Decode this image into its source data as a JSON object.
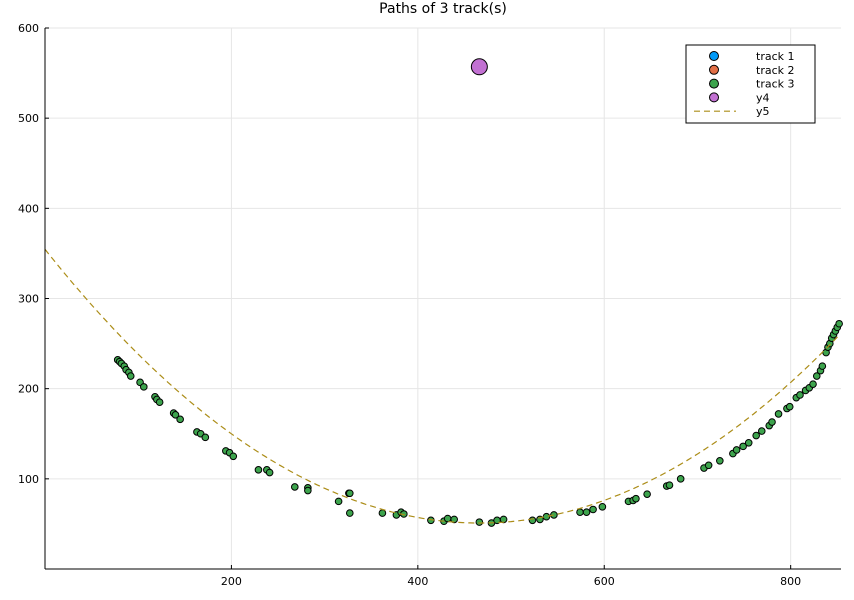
{
  "chart_data": {
    "type": "scatter",
    "title": "Paths of 3 track(s)",
    "xlabel": "",
    "ylabel": "",
    "xlim": [
      0,
      854
    ],
    "ylim": [
      0,
      600
    ],
    "x_ticks": [
      200,
      400,
      600,
      800
    ],
    "y_ticks": [
      100,
      200,
      300,
      400,
      500,
      600
    ],
    "grid": true,
    "legend_position": "top-right",
    "series": [
      {
        "name": "track 1",
        "kind": "scatter",
        "color": "#009af9",
        "points": []
      },
      {
        "name": "track 2",
        "kind": "scatter",
        "color": "#e26f46",
        "points": []
      },
      {
        "name": "track 3",
        "kind": "scatter",
        "color": "#3da44d",
        "points": [
          [
            78,
            232
          ],
          [
            80,
            230
          ],
          [
            82,
            228
          ],
          [
            85,
            225
          ],
          [
            87,
            221
          ],
          [
            90,
            218
          ],
          [
            92,
            214
          ],
          [
            102,
            207
          ],
          [
            106,
            202
          ],
          [
            118,
            191
          ],
          [
            120,
            188
          ],
          [
            123,
            185
          ],
          [
            138,
            173
          ],
          [
            140,
            171
          ],
          [
            145,
            166
          ],
          [
            163,
            152
          ],
          [
            167,
            150
          ],
          [
            172,
            146
          ],
          [
            194,
            131
          ],
          [
            198,
            129
          ],
          [
            202,
            125
          ],
          [
            229,
            110
          ],
          [
            238,
            110
          ],
          [
            241,
            107
          ],
          [
            268,
            91
          ],
          [
            282,
            90
          ],
          [
            282,
            87
          ],
          [
            315,
            75
          ],
          [
            326,
            84
          ],
          [
            327,
            62
          ],
          [
            327,
            84
          ],
          [
            362,
            62
          ],
          [
            377,
            60
          ],
          [
            382,
            63
          ],
          [
            385,
            61
          ],
          [
            414,
            54
          ],
          [
            428,
            53
          ],
          [
            432,
            56
          ],
          [
            439,
            55
          ],
          [
            466,
            52
          ],
          [
            479,
            51
          ],
          [
            485,
            54
          ],
          [
            492,
            55
          ],
          [
            523,
            54
          ],
          [
            531,
            55
          ],
          [
            538,
            58
          ],
          [
            546,
            60
          ],
          [
            574,
            63
          ],
          [
            581,
            63
          ],
          [
            588,
            66
          ],
          [
            598,
            69
          ],
          [
            626,
            75
          ],
          [
            631,
            76
          ],
          [
            634,
            78
          ],
          [
            646,
            83
          ],
          [
            667,
            92
          ],
          [
            670,
            93
          ],
          [
            682,
            100
          ],
          [
            707,
            112
          ],
          [
            712,
            115
          ],
          [
            724,
            120
          ],
          [
            738,
            128
          ],
          [
            742,
            132
          ],
          [
            749,
            136
          ],
          [
            755,
            140
          ],
          [
            763,
            148
          ],
          [
            769,
            153
          ],
          [
            777,
            159
          ],
          [
            780,
            163
          ],
          [
            787,
            172
          ],
          [
            796,
            178
          ],
          [
            799,
            180
          ],
          [
            806,
            190
          ],
          [
            810,
            193
          ],
          [
            816,
            198
          ],
          [
            820,
            201
          ],
          [
            824,
            205
          ],
          [
            828,
            214
          ],
          [
            832,
            220
          ],
          [
            834,
            225
          ],
          [
            838,
            240
          ],
          [
            840,
            246
          ],
          [
            842,
            250
          ],
          [
            844,
            256
          ],
          [
            846,
            260
          ],
          [
            848,
            264
          ],
          [
            850,
            268
          ],
          [
            852,
            272
          ]
        ]
      },
      {
        "name": "y4",
        "kind": "scatter",
        "color": "#c271d2",
        "points": [
          [
            466,
            557
          ]
        ]
      },
      {
        "name": "y5",
        "kind": "line-dashed",
        "color": "#ac8d18",
        "curve": {
          "vertex_x": 466,
          "vertex_y": 51,
          "a": 0.001398
        }
      }
    ]
  }
}
